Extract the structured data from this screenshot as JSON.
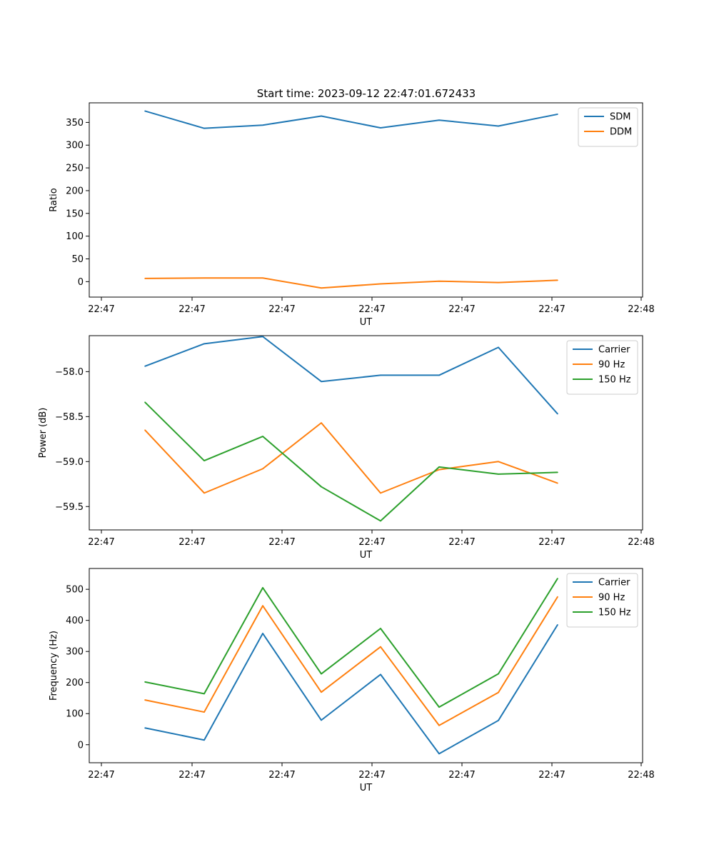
{
  "figure": {
    "title": "Start time: 2023-09-12 22:47:01.672433"
  },
  "chart_data": [
    {
      "type": "line",
      "title": "Start time: 2023-09-12 22:47:01.672433",
      "xlabel": "UT",
      "ylabel": "Ratio",
      "x_ticks": [
        "22:47",
        "22:47",
        "22:47",
        "22:47",
        "22:47",
        "22:47",
        "22:48"
      ],
      "y_ticks": [
        0,
        50,
        100,
        150,
        200,
        250,
        300,
        350
      ],
      "ylim": [
        -34,
        393
      ],
      "legend_position": "top-right",
      "series": [
        {
          "name": "SDM",
          "color": "#1f77b4",
          "values": [
            375,
            337,
            344,
            364,
            338,
            355,
            342,
            368
          ]
        },
        {
          "name": "DDM",
          "color": "#ff7f0e",
          "values": [
            7,
            8,
            8,
            -14,
            -5,
            1,
            -2,
            3
          ]
        }
      ]
    },
    {
      "type": "line",
      "title": "",
      "xlabel": "UT",
      "ylabel": "Power (dB)",
      "x_ticks": [
        "22:47",
        "22:47",
        "22:47",
        "22:47",
        "22:47",
        "22:47",
        "22:48"
      ],
      "y_ticks": [
        -59.5,
        -59.0,
        -58.5,
        -58.0
      ],
      "y_tick_labels": [
        "−59.5",
        "−59.0",
        "−58.5",
        "−58.0"
      ],
      "ylim": [
        -59.76,
        -57.6
      ],
      "legend_position": "top-right",
      "series": [
        {
          "name": "Carrier",
          "color": "#1f77b4",
          "values": [
            -57.94,
            -57.69,
            -57.61,
            -58.11,
            -58.04,
            -58.04,
            -57.73,
            -58.47
          ]
        },
        {
          "name": "90 Hz",
          "color": "#ff7f0e",
          "values": [
            -58.65,
            -59.35,
            -59.08,
            -58.57,
            -59.35,
            -59.09,
            -59.0,
            -59.24
          ]
        },
        {
          "name": "150 Hz",
          "color": "#2ca02c",
          "values": [
            -58.34,
            -58.99,
            -58.72,
            -59.28,
            -59.66,
            -59.06,
            -59.14,
            -59.12
          ]
        }
      ]
    },
    {
      "type": "line",
      "title": "",
      "xlabel": "UT",
      "ylabel": "Frequency (Hz)",
      "x_ticks": [
        "22:47",
        "22:47",
        "22:47",
        "22:47",
        "22:47",
        "22:47",
        "22:48"
      ],
      "y_ticks": [
        0,
        100,
        200,
        300,
        400,
        500
      ],
      "ylim": [
        -58,
        567
      ],
      "legend_position": "top-right",
      "series": [
        {
          "name": "Carrier",
          "color": "#1f77b4",
          "values": [
            54,
            15,
            358,
            79,
            226,
            -29,
            78,
            386
          ]
        },
        {
          "name": "90 Hz",
          "color": "#ff7f0e",
          "values": [
            144,
            105,
            447,
            169,
            315,
            62,
            168,
            476
          ]
        },
        {
          "name": "150 Hz",
          "color": "#2ca02c",
          "values": [
            202,
            164,
            505,
            228,
            374,
            121,
            228,
            535
          ]
        }
      ]
    }
  ]
}
